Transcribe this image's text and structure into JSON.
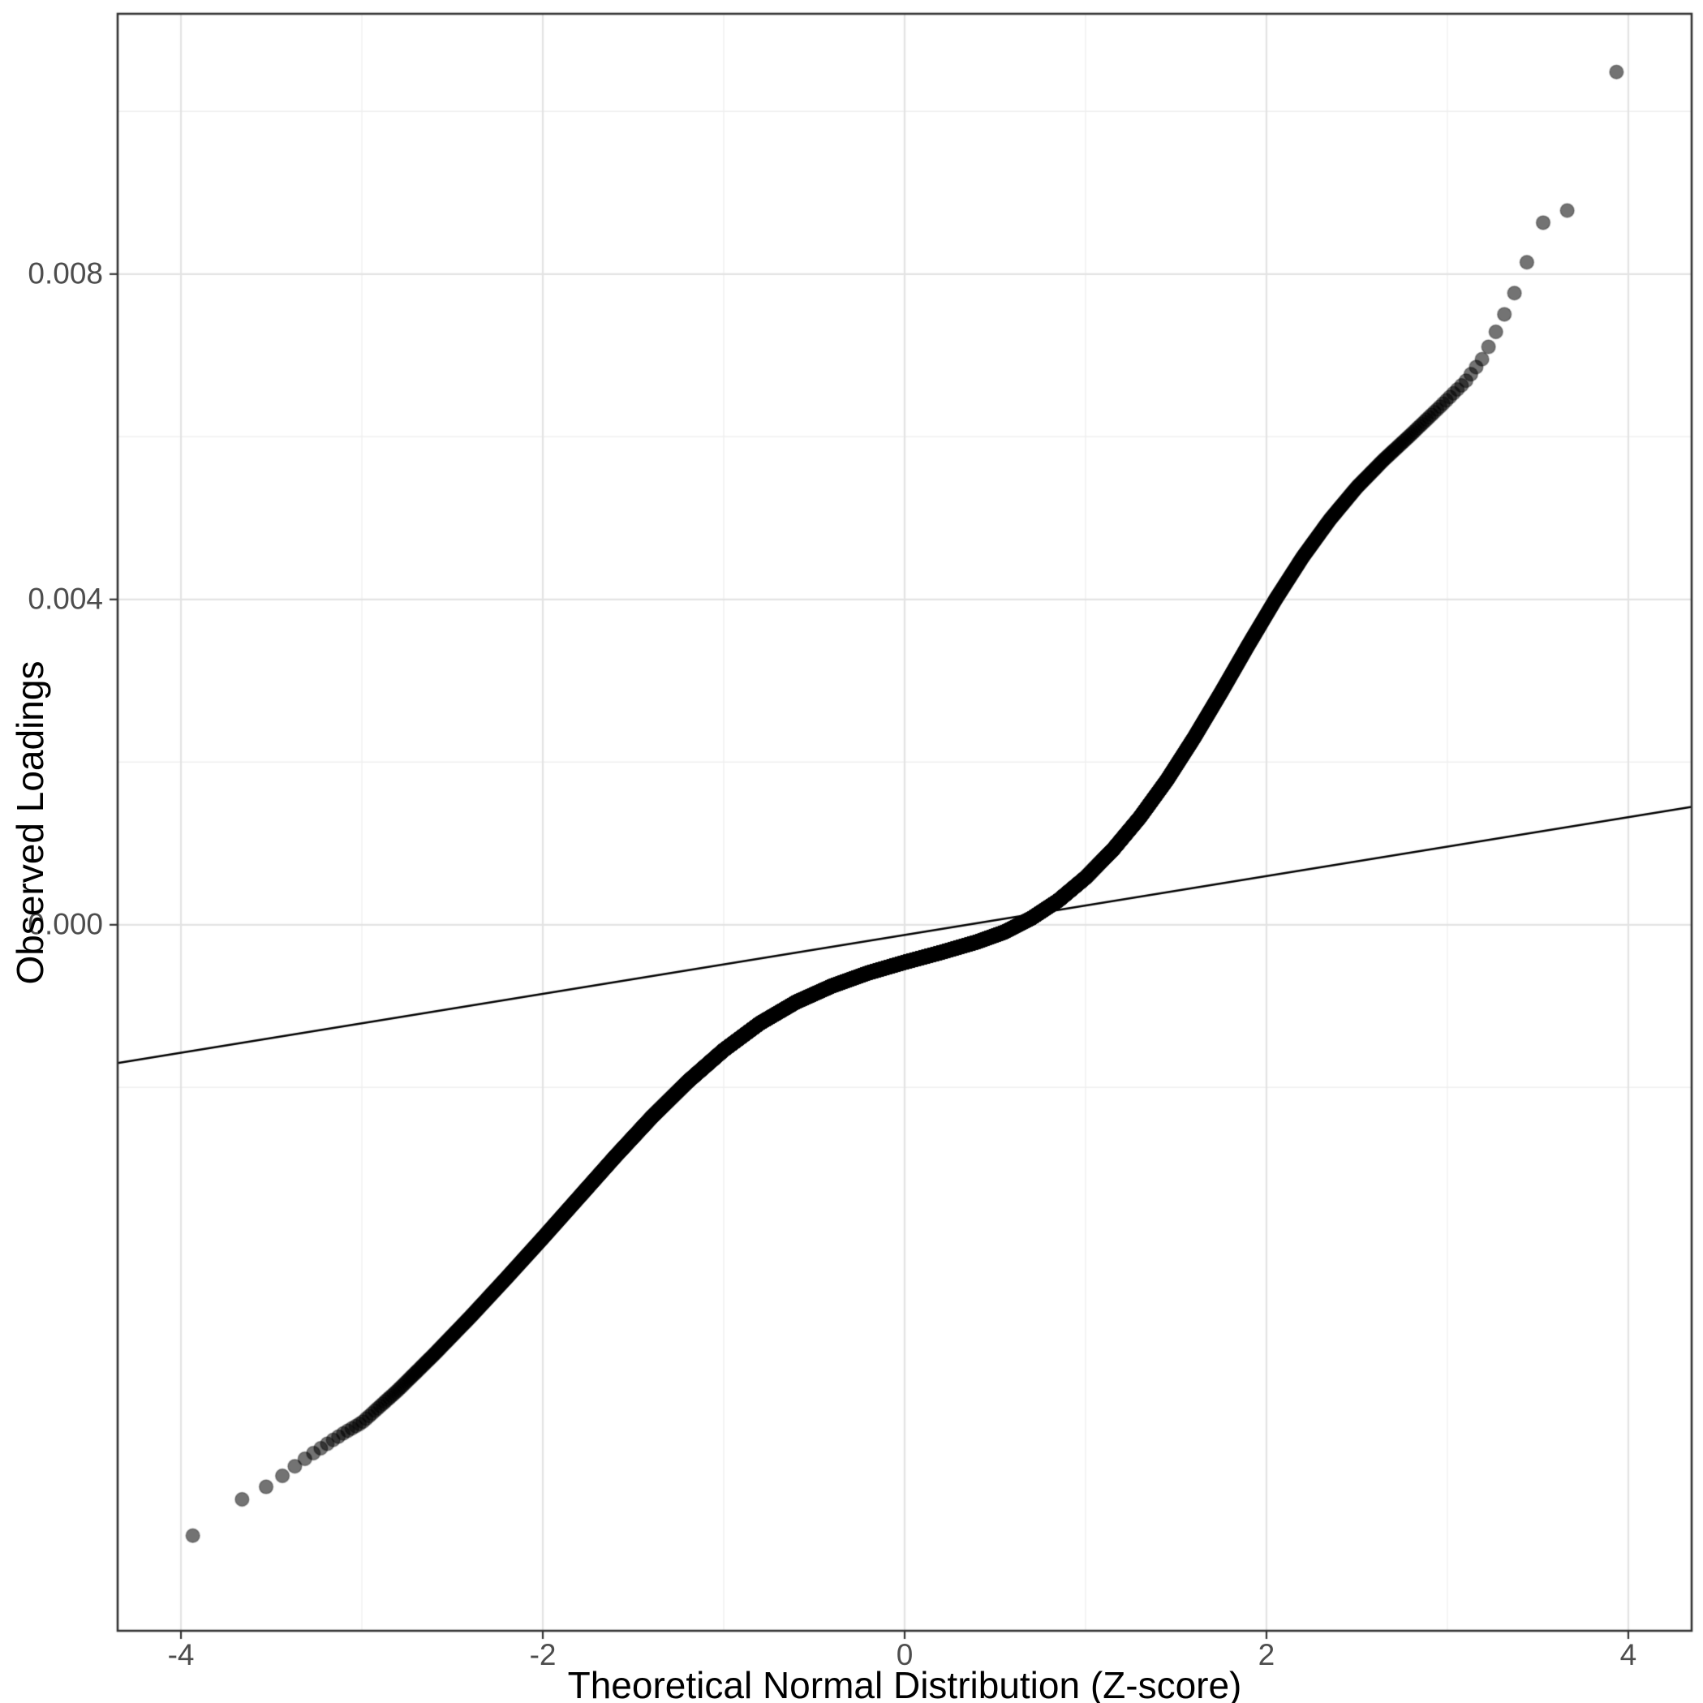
{
  "chart_data": {
    "type": "scatter",
    "subtype": "qq-plot",
    "title": "",
    "xlabel": "Theoretical Normal Distribution (Z-score)",
    "ylabel": "Observed Loadings",
    "xlim": [
      -4.35,
      4.35
    ],
    "ylim": [
      -0.00868,
      0.0112
    ],
    "x_major_ticks": [
      -4,
      -2,
      0,
      2,
      4
    ],
    "x_tick_labels": [
      "-4",
      "-2",
      "0",
      "2",
      "4"
    ],
    "x_minor_ticks": [
      -3,
      -1,
      1,
      3
    ],
    "y_major_ticks": [
      0,
      0.004,
      0.008
    ],
    "y_tick_labels": [
      "0.000",
      "0.004",
      "0.008"
    ],
    "y_minor_ticks": [
      -0.002,
      0.002,
      0.006,
      0.01
    ],
    "grid": true,
    "legend": "none",
    "n_points": 12000,
    "quantile_rule": "z_i = qnorm((i - 0.5) / n), observed value from qq_curve by monotone interpolation",
    "reference_line": {
      "x": [
        -4.35,
        4.35
      ],
      "y": [
        -0.0017,
        0.00145
      ],
      "slope": 0.000362,
      "intercept": -0.000125
    },
    "qq_curve": {
      "z": [
        -3.94,
        -3.66,
        -3.52,
        -3.43,
        -3.36,
        -3.3,
        -3.25,
        -3.21,
        -3.17,
        -3.1,
        -3.0,
        -2.8,
        -2.6,
        -2.4,
        -2.2,
        -2.0,
        -1.8,
        -1.6,
        -1.4,
        -1.2,
        -1.0,
        -0.8,
        -0.6,
        -0.4,
        -0.2,
        0.0,
        0.2,
        0.4,
        0.55,
        0.7,
        0.85,
        1.0,
        1.15,
        1.3,
        1.45,
        1.6,
        1.75,
        1.9,
        2.05,
        2.2,
        2.35,
        2.5,
        2.65,
        2.8,
        2.95,
        3.1,
        3.2,
        3.27,
        3.34,
        3.42,
        3.5,
        3.68,
        3.94
      ],
      "y": [
        -0.00752,
        -0.00706,
        -0.0069,
        -0.00676,
        -0.00664,
        -0.00654,
        -0.00647,
        -0.00641,
        -0.00635,
        -0.00625,
        -0.00612,
        -0.00572,
        -0.00528,
        -0.00482,
        -0.00434,
        -0.00385,
        -0.00335,
        -0.00285,
        -0.00237,
        -0.00193,
        -0.00154,
        -0.00121,
        -0.00095,
        -0.00075,
        -0.00059,
        -0.00046,
        -0.00034,
        -0.00021,
        -9e-05,
        8e-05,
        0.0003,
        0.00058,
        0.00092,
        0.00132,
        0.00178,
        0.0023,
        0.00286,
        0.00344,
        0.004,
        0.00452,
        0.00498,
        0.00538,
        0.00572,
        0.00603,
        0.00635,
        0.00668,
        0.00698,
        0.0073,
        0.00762,
        0.008,
        0.0086,
        0.0088,
        0.01052
      ]
    },
    "extreme_points": {
      "lowest": [
        -3.94,
        -0.00752
      ],
      "highest": [
        3.94,
        0.01052
      ],
      "upper_outlier_pairs": [
        [
          3.42,
          0.008
        ],
        [
          3.5,
          0.0086
        ],
        [
          3.68,
          0.0088
        ]
      ],
      "lower_outliers": [
        [
          -3.94,
          -0.00752
        ],
        [
          -3.66,
          -0.00706
        ],
        [
          -3.52,
          -0.0069
        ],
        [
          -3.43,
          -0.00676
        ]
      ]
    },
    "point_style": {
      "color": "#000000",
      "fill_alpha": 0.55,
      "edge_alpha": 0.3,
      "radius_px": 8.5
    },
    "colors": {
      "background": "#ffffff",
      "panel_background": "#ffffff",
      "grid_major": "#e3e3e3",
      "grid_minor": "#f0f0f0",
      "panel_border": "#333333",
      "axis_ticks": "#333333",
      "reference_line": "#000000",
      "tick_label_color": "#4d4d4d",
      "axis_title_color": "#000000"
    }
  }
}
